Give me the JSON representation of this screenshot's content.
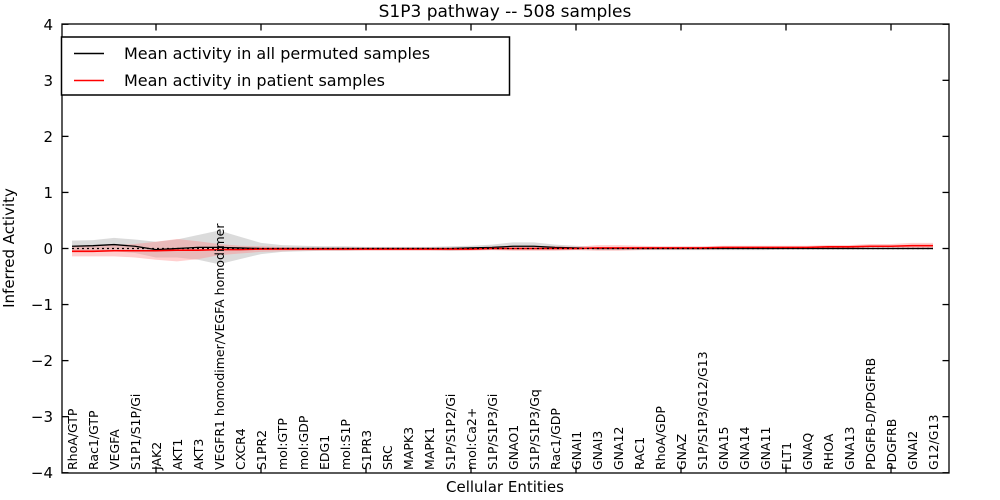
{
  "title": "S1P3 pathway -- 508 samples",
  "legend": {
    "items": [
      {
        "label": "Mean activity in all permuted samples",
        "color": "#000000"
      },
      {
        "label": "Mean activity in patient samples",
        "color": "#ff0000"
      }
    ]
  },
  "chart_data": {
    "type": "line",
    "title": "S1P3 pathway -- 508 samples",
    "xlabel": "Cellular Entities",
    "ylabel": "Inferred Activity",
    "ylim": [
      -4,
      4
    ],
    "grid": false,
    "legend_position": "upper left",
    "yticks": [
      4,
      3,
      2,
      1,
      0,
      -1,
      -2,
      -3,
      -4
    ],
    "ytick_labels": [
      "4",
      "3",
      "2",
      "1",
      "0",
      "−1",
      "−2",
      "−3",
      "−4"
    ],
    "categories": [
      "RhoA/GTP",
      "Rac1/GTP",
      "VEGFA",
      "S1P1/S1P/Gi",
      "JAK2",
      "AKT1",
      "AKT3",
      "VEGFR1 homodimer/VEGFA homodimer",
      "CXCR4",
      "S1PR2",
      "mol:GTP",
      "mol:GDP",
      "EDG1",
      "mol:S1P",
      "S1PR3",
      "SRC",
      "MAPK3",
      "MAPK1",
      "S1P/S1P2/Gi",
      "mol:Ca2+",
      "S1P/S1P3/Gi",
      "GNAO1",
      "S1P/S1P3/Gq",
      "Rac1/GDP",
      "GNAI1",
      "GNAI3",
      "GNA12",
      "RAC1",
      "RhoA/GDP",
      "GNAZ",
      "S1P/S1P3/G12/G13",
      "GNA15",
      "GNA14",
      "GNA11",
      "FLT1",
      "GNAQ",
      "RHOA",
      "GNA13",
      "PDGFB-D/PDGFRB",
      "PDGFRB",
      "GNAI2",
      "G12/G13"
    ],
    "series": [
      {
        "name": "Mean activity in all permuted samples",
        "color": "#000000",
        "style": "solid",
        "values": [
          0.04,
          0.05,
          0.07,
          0.04,
          -0.02,
          0.0,
          0.02,
          0.02,
          0.01,
          0.0,
          0.0,
          0.0,
          0.0,
          0.0,
          0.0,
          0.0,
          0.0,
          0.0,
          0.0,
          0.01,
          0.02,
          0.04,
          0.04,
          0.02,
          0.01,
          0.0,
          0.0,
          0.0,
          0.0,
          0.0,
          0.0,
          0.0,
          0.0,
          0.0,
          0.0,
          0.0,
          0.0,
          0.0,
          0.0,
          0.0,
          0.0,
          0.0
        ]
      },
      {
        "name": "Mean activity in patient samples",
        "color": "#ff0000",
        "style": "solid",
        "values": [
          -0.05,
          -0.05,
          -0.04,
          -0.04,
          -0.04,
          -0.03,
          -0.03,
          -0.02,
          -0.02,
          -0.01,
          -0.01,
          -0.01,
          -0.01,
          -0.01,
          -0.01,
          -0.01,
          -0.01,
          -0.01,
          -0.01,
          -0.01,
          0.0,
          0.0,
          0.0,
          0.0,
          0.0,
          0.01,
          0.01,
          0.01,
          0.01,
          0.01,
          0.01,
          0.02,
          0.02,
          0.02,
          0.02,
          0.02,
          0.03,
          0.03,
          0.04,
          0.04,
          0.05,
          0.05
        ]
      },
      {
        "name": "zero-baseline",
        "color": "#000000",
        "style": "dotted",
        "values": [
          0,
          0,
          0,
          0,
          0,
          0,
          0,
          0,
          0,
          0,
          0,
          0,
          0,
          0,
          0,
          0,
          0,
          0,
          0,
          0,
          0,
          0,
          0,
          0,
          0,
          0,
          0,
          0,
          0,
          0,
          0,
          0,
          0,
          0,
          0,
          0,
          0,
          0,
          0,
          0,
          0,
          0
        ]
      }
    ],
    "bands": [
      {
        "name": "permuted-samples-std-band",
        "color": "#999999",
        "opacity": 0.35,
        "center_series": 0,
        "halfwidth": [
          0.1,
          0.1,
          0.12,
          0.12,
          0.14,
          0.16,
          0.22,
          0.3,
          0.2,
          0.1,
          0.06,
          0.05,
          0.04,
          0.04,
          0.03,
          0.03,
          0.03,
          0.03,
          0.04,
          0.04,
          0.05,
          0.07,
          0.07,
          0.05,
          0.04,
          0.03,
          0.03,
          0.03,
          0.03,
          0.03,
          0.03,
          0.03,
          0.03,
          0.03,
          0.02,
          0.02,
          0.02,
          0.02,
          0.02,
          0.02,
          0.02,
          0.02
        ]
      },
      {
        "name": "patient-samples-std-band",
        "color": "#ff8888",
        "opacity": 0.4,
        "center_series": 1,
        "halfwidth": [
          0.09,
          0.09,
          0.1,
          0.12,
          0.16,
          0.2,
          0.16,
          0.1,
          0.07,
          0.05,
          0.04,
          0.03,
          0.03,
          0.03,
          0.03,
          0.03,
          0.03,
          0.03,
          0.03,
          0.03,
          0.03,
          0.04,
          0.04,
          0.04,
          0.03,
          0.05,
          0.05,
          0.04,
          0.03,
          0.03,
          0.03,
          0.03,
          0.03,
          0.03,
          0.03,
          0.03,
          0.03,
          0.03,
          0.04,
          0.04,
          0.05,
          0.05
        ]
      }
    ]
  }
}
